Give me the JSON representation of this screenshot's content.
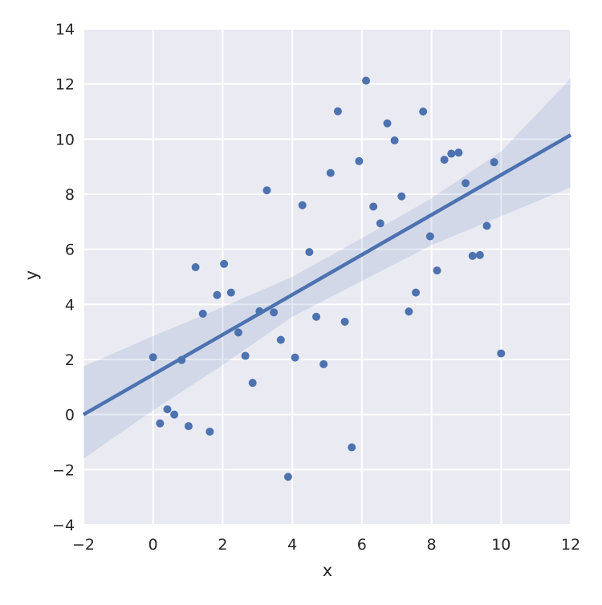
{
  "chart_data": {
    "type": "scatter",
    "title": "",
    "xlabel": "x",
    "ylabel": "y",
    "xlim": [
      -2,
      12
    ],
    "ylim": [
      -4,
      14
    ],
    "xticks": [
      -2,
      0,
      2,
      4,
      6,
      8,
      10,
      12
    ],
    "yticks": [
      -4,
      -2,
      0,
      2,
      4,
      6,
      8,
      10,
      12,
      14
    ],
    "xtick_labels": [
      "−2",
      "0",
      "2",
      "4",
      "6",
      "8",
      "10",
      "12"
    ],
    "ytick_labels": [
      "−4",
      "−2",
      "0",
      "2",
      "4",
      "6",
      "8",
      "10",
      "12",
      "14"
    ],
    "grid": true,
    "legend": "none",
    "colors": {
      "background": "#eaeaf2",
      "grid": "#ffffff",
      "points": "#4c72b0",
      "line": "#4c72b0",
      "band": "#4c72b0"
    },
    "points": [
      {
        "x": 0.0,
        "y": 2.08
      },
      {
        "x": 0.2,
        "y": -0.32
      },
      {
        "x": 0.41,
        "y": 0.19
      },
      {
        "x": 0.61,
        "y": 0.0
      },
      {
        "x": 0.82,
        "y": 1.98
      },
      {
        "x": 1.02,
        "y": -0.42
      },
      {
        "x": 1.22,
        "y": 5.35
      },
      {
        "x": 1.43,
        "y": 3.66
      },
      {
        "x": 1.63,
        "y": -0.62
      },
      {
        "x": 1.84,
        "y": 4.34
      },
      {
        "x": 2.04,
        "y": 5.47
      },
      {
        "x": 2.24,
        "y": 4.43
      },
      {
        "x": 2.45,
        "y": 2.98
      },
      {
        "x": 2.65,
        "y": 2.13
      },
      {
        "x": 2.86,
        "y": 1.15
      },
      {
        "x": 3.06,
        "y": 3.75
      },
      {
        "x": 3.27,
        "y": 8.14
      },
      {
        "x": 3.47,
        "y": 3.71
      },
      {
        "x": 3.67,
        "y": 2.71
      },
      {
        "x": 3.88,
        "y": -2.26
      },
      {
        "x": 4.08,
        "y": 2.07
      },
      {
        "x": 4.29,
        "y": 7.6
      },
      {
        "x": 4.49,
        "y": 5.9
      },
      {
        "x": 4.69,
        "y": 3.55
      },
      {
        "x": 4.9,
        "y": 1.83
      },
      {
        "x": 5.1,
        "y": 8.77
      },
      {
        "x": 5.31,
        "y": 11.01
      },
      {
        "x": 5.51,
        "y": 3.37
      },
      {
        "x": 5.71,
        "y": -1.19
      },
      {
        "x": 5.92,
        "y": 9.2
      },
      {
        "x": 6.12,
        "y": 12.12
      },
      {
        "x": 6.33,
        "y": 7.55
      },
      {
        "x": 6.53,
        "y": 6.94
      },
      {
        "x": 6.73,
        "y": 10.57
      },
      {
        "x": 6.94,
        "y": 9.95
      },
      {
        "x": 7.14,
        "y": 7.92
      },
      {
        "x": 7.35,
        "y": 3.74
      },
      {
        "x": 7.55,
        "y": 4.43
      },
      {
        "x": 7.76,
        "y": 11.0
      },
      {
        "x": 7.96,
        "y": 6.47
      },
      {
        "x": 8.16,
        "y": 5.23
      },
      {
        "x": 8.37,
        "y": 9.25
      },
      {
        "x": 8.57,
        "y": 9.47
      },
      {
        "x": 8.78,
        "y": 9.51
      },
      {
        "x": 8.98,
        "y": 8.4
      },
      {
        "x": 9.18,
        "y": 5.76
      },
      {
        "x": 9.39,
        "y": 5.79
      },
      {
        "x": 9.59,
        "y": 6.85
      },
      {
        "x": 9.8,
        "y": 9.16
      },
      {
        "x": 10.0,
        "y": 2.22
      }
    ],
    "regression": {
      "x": [
        -2,
        12
      ],
      "y": [
        0.0,
        10.15
      ]
    },
    "confidence_band": {
      "x": [
        -2,
        0,
        2,
        4,
        6,
        8,
        10,
        12
      ],
      "upper": [
        1.75,
        2.85,
        3.9,
        5.0,
        6.4,
        7.85,
        9.55,
        12.2
      ],
      "lower": [
        -1.6,
        0.15,
        1.8,
        3.55,
        4.85,
        6.15,
        7.2,
        8.25
      ]
    }
  }
}
